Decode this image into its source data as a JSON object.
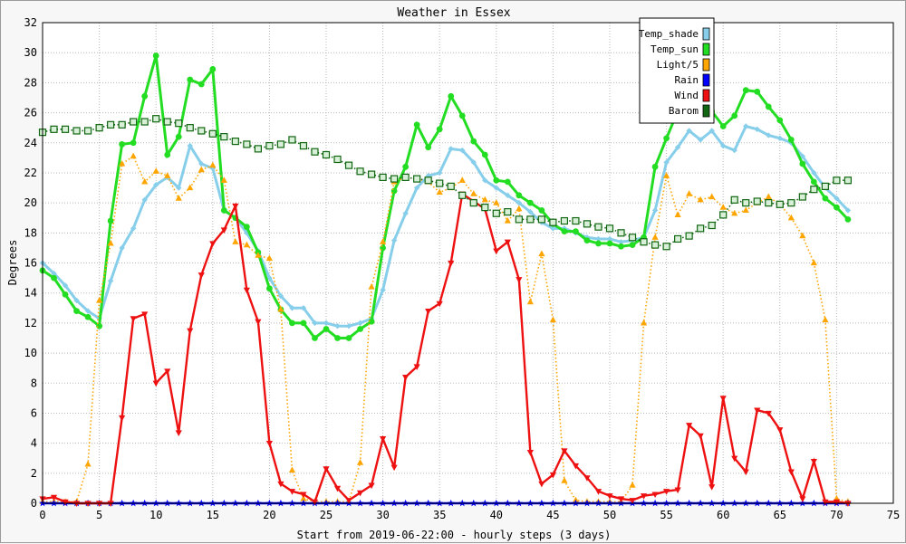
{
  "chart_data": {
    "type": "line",
    "title": "Weather in Essex",
    "xlabel": "Start from 2019-06-22:00 - hourly steps (3 days)",
    "ylabel": "Degrees",
    "xlim": [
      0,
      75
    ],
    "ylim": [
      0,
      32
    ],
    "xticks": [
      0,
      5,
      10,
      15,
      20,
      25,
      30,
      35,
      40,
      45,
      50,
      55,
      60,
      65,
      70,
      75
    ],
    "yticks": [
      0,
      2,
      4,
      6,
      8,
      10,
      12,
      14,
      16,
      18,
      20,
      22,
      24,
      26,
      28,
      30,
      32
    ],
    "grid": true,
    "legend_position": "top-right",
    "series": [
      {
        "name": "Temp_shade",
        "color": "#87ceeb",
        "marker": "diamond",
        "line": "solid",
        "values": [
          16.0,
          15.3,
          14.5,
          13.5,
          12.8,
          12.3,
          14.8,
          17.0,
          18.3,
          20.2,
          21.2,
          21.7,
          21.0,
          23.8,
          22.6,
          22.3,
          19.5,
          19.0,
          18.0,
          16.8,
          15.0,
          13.8,
          13.0,
          13.0,
          12.0,
          12.0,
          11.8,
          11.8,
          12.0,
          12.3,
          14.2,
          17.5,
          19.3,
          21.0,
          21.8,
          22.0,
          23.6,
          23.5,
          22.7,
          21.5,
          21.0,
          20.5,
          20.0,
          19.4,
          18.7,
          18.3,
          18.3,
          18.0,
          17.7,
          17.6,
          17.6,
          17.4,
          17.5,
          17.7,
          19.5,
          22.7,
          23.7,
          24.8,
          24.2,
          24.8,
          23.8,
          23.5,
          25.1,
          24.9,
          24.5,
          24.3,
          24.0,
          23.1,
          22.0,
          21.0,
          20.3,
          19.5
        ]
      },
      {
        "name": "Temp_sun",
        "color": "#22dd22",
        "marker": "circle",
        "line": "solid",
        "values": [
          15.5,
          15.0,
          13.9,
          12.8,
          12.4,
          11.8,
          18.8,
          23.9,
          24.0,
          27.1,
          29.8,
          23.2,
          24.4,
          28.2,
          27.9,
          28.9,
          19.5,
          19.0,
          18.4,
          16.7,
          14.3,
          12.9,
          12.0,
          12.0,
          11.0,
          11.6,
          11.0,
          11.0,
          11.6,
          12.1,
          17.0,
          20.8,
          22.4,
          25.2,
          23.7,
          24.9,
          27.1,
          25.8,
          24.1,
          23.2,
          21.5,
          21.4,
          20.5,
          20.0,
          19.5,
          18.6,
          18.1,
          18.1,
          17.5,
          17.3,
          17.3,
          17.1,
          17.2,
          17.7,
          22.4,
          24.3,
          26.1,
          26.0,
          25.8,
          26.1,
          25.1,
          25.8,
          27.5,
          27.4,
          26.4,
          25.5,
          24.2,
          22.6,
          21.4,
          20.3,
          19.7,
          18.9
        ]
      },
      {
        "name": "Light/5",
        "color": "#ffa500",
        "marker": "triangle",
        "line": "dotted",
        "values": [
          0.1,
          0.1,
          0.1,
          0.1,
          2.6,
          13.5,
          17.3,
          22.6,
          23.1,
          21.4,
          22.1,
          21.8,
          20.3,
          21.0,
          22.2,
          22.5,
          21.5,
          17.4,
          17.2,
          16.5,
          16.3,
          12.9,
          2.2,
          0.3,
          0.1,
          0.1,
          0.1,
          0.1,
          2.7,
          14.4,
          17.4,
          21.4,
          21.7,
          21.6,
          21.4,
          20.7,
          21.0,
          21.5,
          20.6,
          20.2,
          20.0,
          18.8,
          19.6,
          13.4,
          16.6,
          12.2,
          1.5,
          0.2,
          0.1,
          0.1,
          0.1,
          0.1,
          1.2,
          12.0,
          17.7,
          21.8,
          19.2,
          20.6,
          20.2,
          20.4,
          19.7,
          19.3,
          19.5,
          20.0,
          20.4,
          19.9,
          19.0,
          17.8,
          16.0,
          12.2,
          0.3,
          0.1
        ]
      },
      {
        "name": "Rain",
        "color": "#0000ff",
        "marker": "star",
        "line": "solid",
        "values": [
          0,
          0,
          0,
          0,
          0,
          0,
          0,
          0,
          0,
          0,
          0,
          0,
          0,
          0,
          0,
          0,
          0,
          0,
          0,
          0,
          0,
          0,
          0,
          0,
          0,
          0,
          0,
          0,
          0,
          0,
          0,
          0,
          0,
          0,
          0,
          0,
          0,
          0,
          0,
          0,
          0,
          0,
          0,
          0,
          0,
          0,
          0,
          0,
          0,
          0,
          0,
          0,
          0,
          0,
          0,
          0,
          0,
          0,
          0,
          0,
          0,
          0,
          0,
          0,
          0,
          0,
          0,
          0,
          0,
          0,
          0,
          0
        ]
      },
      {
        "name": "Wind",
        "color": "#ee1111",
        "marker": "triangle-down",
        "line": "solid",
        "values": [
          0.3,
          0.4,
          0.1,
          0.0,
          0.0,
          0.0,
          0.0,
          5.7,
          12.3,
          12.6,
          8.0,
          8.8,
          4.7,
          11.5,
          15.2,
          17.3,
          18.2,
          19.8,
          14.2,
          12.1,
          4.0,
          1.3,
          0.8,
          0.6,
          0.1,
          2.3,
          1.0,
          0.2,
          0.7,
          1.2,
          4.3,
          2.4,
          8.4,
          9.1,
          12.8,
          13.3,
          16.0,
          20.6,
          20.1,
          19.6,
          16.8,
          17.4,
          14.9,
          3.4,
          1.3,
          1.9,
          3.5,
          2.5,
          1.7,
          0.8,
          0.5,
          0.3,
          0.2,
          0.5,
          0.6,
          0.8,
          0.9,
          5.2,
          4.5,
          1.1,
          7.0,
          3.0,
          2.1,
          6.2,
          6.0,
          4.9,
          2.1,
          0.3,
          2.8,
          0.1,
          0.1,
          0.0
        ]
      },
      {
        "name": "Barom",
        "color": "#116611",
        "marker": "square",
        "line": "dotted",
        "values": [
          24.7,
          24.9,
          24.9,
          24.8,
          24.8,
          25.0,
          25.2,
          25.2,
          25.4,
          25.4,
          25.6,
          25.4,
          25.3,
          25.0,
          24.8,
          24.6,
          24.4,
          24.1,
          23.9,
          23.6,
          23.8,
          23.9,
          24.2,
          23.8,
          23.4,
          23.2,
          22.9,
          22.5,
          22.1,
          21.9,
          21.7,
          21.6,
          21.7,
          21.6,
          21.5,
          21.3,
          21.1,
          20.5,
          20.0,
          19.7,
          19.3,
          19.4,
          18.9,
          18.9,
          18.9,
          18.7,
          18.8,
          18.8,
          18.6,
          18.4,
          18.3,
          18.0,
          17.7,
          17.4,
          17.2,
          17.1,
          17.6,
          17.8,
          18.3,
          18.5,
          19.2,
          20.2,
          20.0,
          20.1,
          20.0,
          19.9,
          20.0,
          20.4,
          20.9,
          21.1,
          21.5,
          21.5
        ]
      }
    ]
  }
}
